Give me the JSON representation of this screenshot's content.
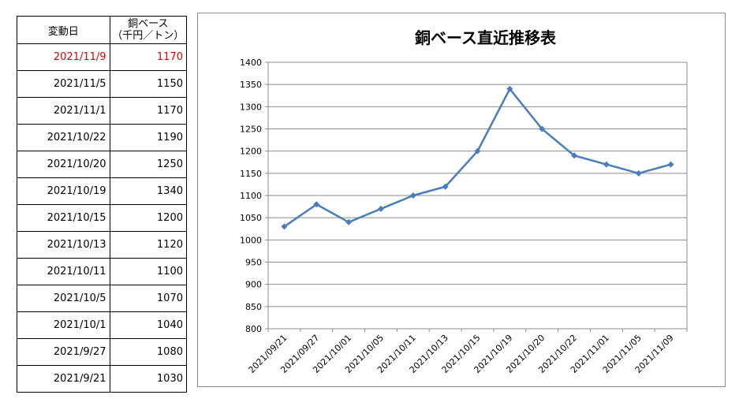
{
  "table": {
    "header": {
      "date": "変動日",
      "value_line1": "銅ベース",
      "value_line2": "（千円／トン）"
    },
    "rows": [
      {
        "date": "2021/11/9",
        "value": "1170",
        "highlight": true
      },
      {
        "date": "2021/11/5",
        "value": "1150",
        "highlight": false
      },
      {
        "date": "2021/11/1",
        "value": "1170",
        "highlight": false
      },
      {
        "date": "2021/10/22",
        "value": "1190",
        "highlight": false
      },
      {
        "date": "2021/10/20",
        "value": "1250",
        "highlight": false
      },
      {
        "date": "2021/10/19",
        "value": "1340",
        "highlight": false
      },
      {
        "date": "2021/10/15",
        "value": "1200",
        "highlight": false
      },
      {
        "date": "2021/10/13",
        "value": "1120",
        "highlight": false
      },
      {
        "date": "2021/10/11",
        "value": "1100",
        "highlight": false
      },
      {
        "date": "2021/10/5",
        "value": "1070",
        "highlight": false
      },
      {
        "date": "2021/10/1",
        "value": "1040",
        "highlight": false
      },
      {
        "date": "2021/9/27",
        "value": "1080",
        "highlight": false
      },
      {
        "date": "2021/9/21",
        "value": "1030",
        "highlight": false
      }
    ],
    "highlight_color": "#e00000"
  },
  "chart_data": {
    "type": "line",
    "title": "銅ベース直近推移表",
    "categories": [
      "2021/09/21",
      "2021/09/27",
      "2021/10/01",
      "2021/10/05",
      "2021/10/11",
      "2021/10/13",
      "2021/10/15",
      "2021/10/19",
      "2021/10/20",
      "2021/10/22",
      "2021/11/01",
      "2021/11/05",
      "2021/11/09"
    ],
    "series": [
      {
        "values": [
          1030,
          1080,
          1040,
          1070,
          1100,
          1120,
          1200,
          1340,
          1250,
          1190,
          1170,
          1150,
          1170
        ],
        "color": "#4a7ebb"
      }
    ],
    "ylim": [
      800,
      1400
    ],
    "yticks": [
      800,
      850,
      900,
      950,
      1000,
      1050,
      1100,
      1150,
      1200,
      1250,
      1300,
      1350,
      1400
    ],
    "xlabel": "",
    "ylabel": "",
    "grid": true,
    "legend": "none",
    "marker": "diamond"
  }
}
